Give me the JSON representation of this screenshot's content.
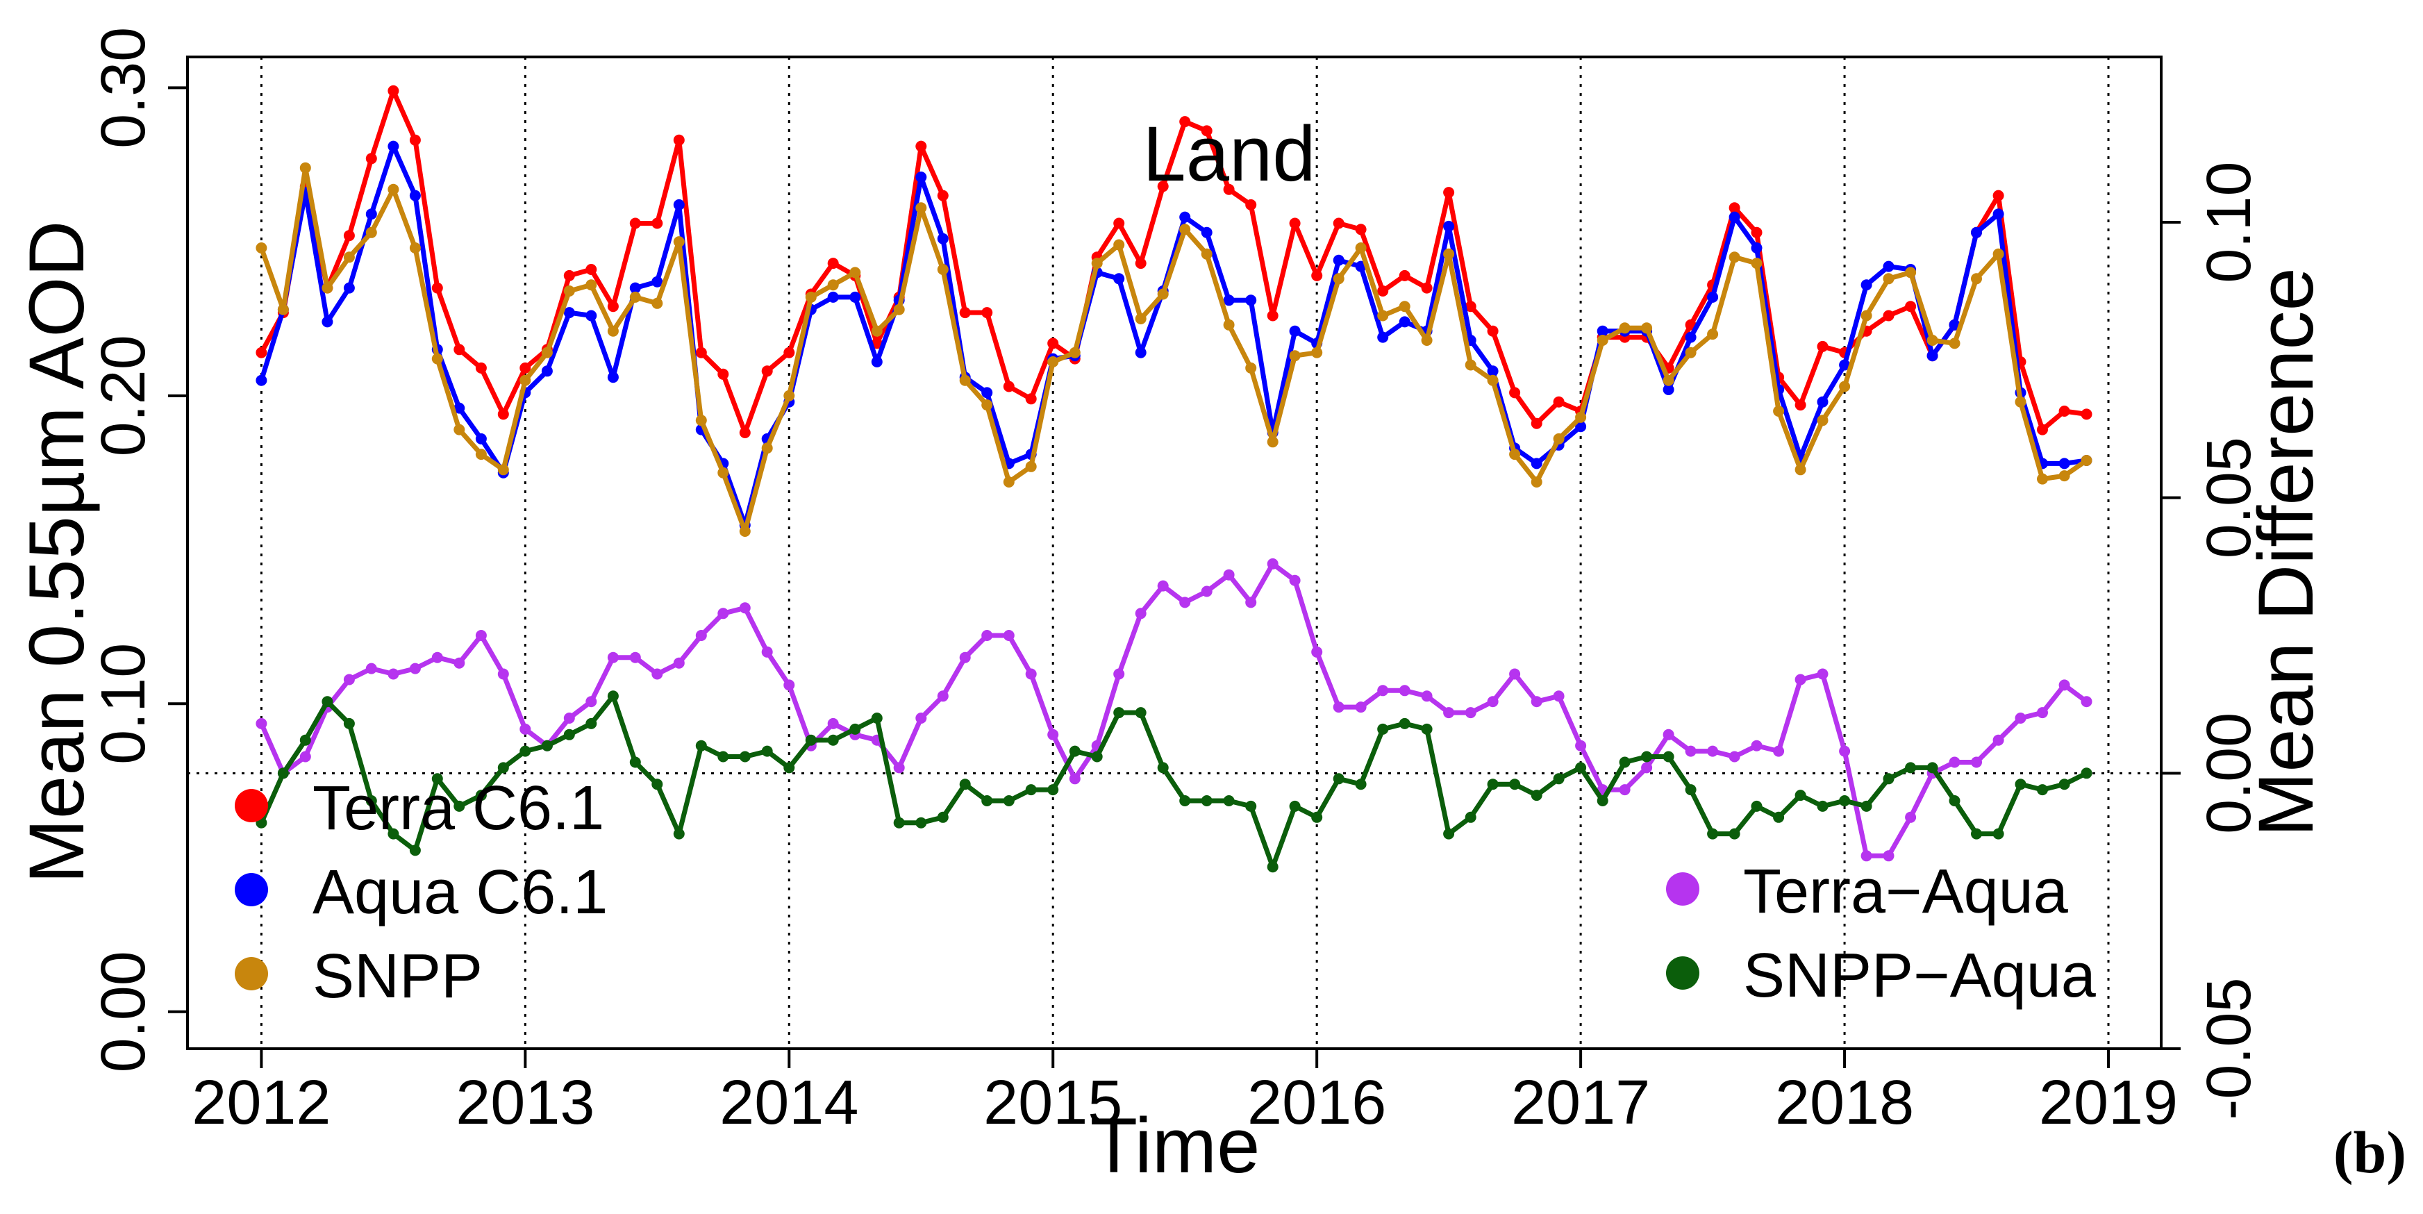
{
  "chart_data": {
    "type": "line",
    "title": "Land",
    "panel_label": "(b)",
    "xlabel": "Time",
    "ylabel_left": "Mean 0.55µm AOD",
    "ylabel_right": "Mean Difference",
    "x_ticks": [
      "2012",
      "2013",
      "2014",
      "2015",
      "2016",
      "2017",
      "2018",
      "2019"
    ],
    "x_tick_values": [
      2012,
      2013,
      2014,
      2015,
      2016,
      2017,
      2018,
      2019
    ],
    "xlim": [
      2011.72,
      2019.2
    ],
    "y_left": {
      "ticks": [
        "0.00",
        "0.10",
        "0.20",
        "0.30"
      ],
      "tick_values": [
        0,
        0.1,
        0.2,
        0.3
      ],
      "lim": [
        -0.012,
        0.31
      ]
    },
    "y_right": {
      "ticks": [
        "-0.05",
        "0.00",
        "0.05",
        "0.10"
      ],
      "tick_values": [
        -0.05,
        0,
        0.05,
        0.1
      ],
      "lim": [
        -0.05,
        0.13
      ]
    },
    "grid": "vertical dotted lines at each year; dotted horizontal line at zero mean difference",
    "x": [
      2012.0,
      2012.083,
      2012.167,
      2012.25,
      2012.333,
      2012.417,
      2012.5,
      2012.583,
      2012.667,
      2012.75,
      2012.833,
      2012.917,
      2013.0,
      2013.083,
      2013.167,
      2013.25,
      2013.333,
      2013.417,
      2013.5,
      2013.583,
      2013.667,
      2013.75,
      2013.833,
      2013.917,
      2014.0,
      2014.083,
      2014.167,
      2014.25,
      2014.333,
      2014.417,
      2014.5,
      2014.583,
      2014.667,
      2014.75,
      2014.833,
      2014.917,
      2015.0,
      2015.083,
      2015.167,
      2015.25,
      2015.333,
      2015.417,
      2015.5,
      2015.583,
      2015.667,
      2015.75,
      2015.833,
      2015.917,
      2016.0,
      2016.083,
      2016.167,
      2016.25,
      2016.333,
      2016.417,
      2016.5,
      2016.583,
      2016.667,
      2016.75,
      2016.833,
      2016.917,
      2017.0,
      2017.083,
      2017.167,
      2017.25,
      2017.333,
      2017.417,
      2017.5,
      2017.583,
      2017.667,
      2017.75,
      2017.833,
      2017.917,
      2018.0,
      2018.083,
      2018.167,
      2018.25,
      2018.333,
      2018.417,
      2018.5,
      2018.583,
      2018.667,
      2018.75,
      2018.833,
      2018.917
    ],
    "series": [
      {
        "name": "Terra C6.1",
        "axis": "left",
        "color": "#ff0000",
        "values": [
          0.214,
          0.227,
          0.268,
          0.235,
          0.252,
          0.277,
          0.299,
          0.283,
          0.235,
          0.215,
          0.209,
          0.194,
          0.209,
          0.215,
          0.239,
          0.241,
          0.229,
          0.256,
          0.256,
          0.283,
          0.214,
          0.207,
          0.188,
          0.208,
          0.214,
          0.233,
          0.243,
          0.239,
          0.217,
          0.232,
          0.281,
          0.265,
          0.227,
          0.227,
          0.203,
          0.199,
          0.217,
          0.212,
          0.245,
          0.256,
          0.243,
          0.268,
          0.289,
          0.286,
          0.267,
          0.262,
          0.226,
          0.256,
          0.239,
          0.256,
          0.254,
          0.234,
          0.239,
          0.235,
          0.266,
          0.229,
          0.221,
          0.201,
          0.191,
          0.198,
          0.195,
          0.219,
          0.219,
          0.219,
          0.209,
          0.223,
          0.236,
          0.261,
          0.253,
          0.206,
          0.197,
          0.216,
          0.214,
          0.221,
          0.226,
          0.229,
          0.213,
          0.223,
          0.253,
          0.265,
          0.211,
          0.189,
          0.195,
          0.194
        ]
      },
      {
        "name": "Aqua C6.1",
        "axis": "left",
        "color": "#0000ff",
        "values": [
          0.205,
          0.228,
          0.266,
          0.224,
          0.235,
          0.259,
          0.281,
          0.265,
          0.215,
          0.196,
          0.186,
          0.175,
          0.201,
          0.208,
          0.227,
          0.226,
          0.206,
          0.235,
          0.237,
          0.262,
          0.189,
          0.178,
          0.158,
          0.186,
          0.198,
          0.228,
          0.232,
          0.232,
          0.211,
          0.231,
          0.271,
          0.251,
          0.206,
          0.201,
          0.178,
          0.181,
          0.212,
          0.213,
          0.24,
          0.238,
          0.214,
          0.234,
          0.258,
          0.253,
          0.231,
          0.231,
          0.188,
          0.221,
          0.217,
          0.244,
          0.242,
          0.219,
          0.224,
          0.221,
          0.255,
          0.218,
          0.208,
          0.183,
          0.178,
          0.184,
          0.19,
          0.221,
          0.221,
          0.221,
          0.202,
          0.219,
          0.232,
          0.258,
          0.248,
          0.202,
          0.18,
          0.198,
          0.21,
          0.236,
          0.242,
          0.241,
          0.213,
          0.223,
          0.253,
          0.259,
          0.201,
          0.178,
          0.178,
          0.179
        ]
      },
      {
        "name": "SNPP",
        "axis": "left",
        "color": "#c8860d",
        "values": [
          0.248,
          0.228,
          0.274,
          0.235,
          0.245,
          0.253,
          0.267,
          0.248,
          0.212,
          0.189,
          0.181,
          0.176,
          0.205,
          0.214,
          0.234,
          0.236,
          0.221,
          0.232,
          0.23,
          0.25,
          0.192,
          0.175,
          0.156,
          0.183,
          0.2,
          0.232,
          0.236,
          0.24,
          0.221,
          0.228,
          0.261,
          0.241,
          0.205,
          0.197,
          0.172,
          0.177,
          0.211,
          0.214,
          0.243,
          0.249,
          0.225,
          0.233,
          0.254,
          0.246,
          0.223,
          0.209,
          0.185,
          0.213,
          0.214,
          0.238,
          0.248,
          0.226,
          0.229,
          0.218,
          0.246,
          0.21,
          0.205,
          0.181,
          0.172,
          0.186,
          0.193,
          0.218,
          0.222,
          0.222,
          0.205,
          0.214,
          0.22,
          0.245,
          0.243,
          0.195,
          0.176,
          0.192,
          0.203,
          0.226,
          0.238,
          0.24,
          0.218,
          0.217,
          0.238,
          0.246,
          0.198,
          0.173,
          0.174,
          0.179
        ]
      },
      {
        "name": "Terra−Aqua",
        "axis": "right",
        "color": "#b634ef",
        "values": [
          0.009,
          -0.0,
          0.003,
          0.012,
          0.017,
          0.019,
          0.018,
          0.019,
          0.021,
          0.02,
          0.025,
          0.018,
          0.008,
          0.005,
          0.01,
          0.013,
          0.021,
          0.021,
          0.018,
          0.02,
          0.025,
          0.029,
          0.03,
          0.022,
          0.016,
          0.005,
          0.009,
          0.007,
          0.006,
          0.001,
          0.01,
          0.014,
          0.021,
          0.025,
          0.025,
          0.018,
          0.007,
          -0.001,
          0.005,
          0.018,
          0.029,
          0.034,
          0.031,
          0.033,
          0.036,
          0.031,
          0.038,
          0.035,
          0.022,
          0.012,
          0.012,
          0.015,
          0.015,
          0.014,
          0.011,
          0.011,
          0.013,
          0.018,
          0.013,
          0.014,
          0.005,
          -0.003,
          -0.003,
          0.001,
          0.007,
          0.004,
          0.004,
          0.003,
          0.005,
          0.004,
          0.017,
          0.018,
          0.004,
          -0.015,
          -0.015,
          -0.008,
          0.0,
          0.002,
          0.002,
          0.006,
          0.01,
          0.011,
          0.016,
          0.013
        ]
      },
      {
        "name": "SNPP−Aqua",
        "axis": "right",
        "color": "#0b5e0b",
        "values": [
          -0.009,
          0.0,
          0.006,
          0.013,
          0.009,
          -0.005,
          -0.011,
          -0.014,
          -0.001,
          -0.006,
          -0.004,
          0.001,
          0.004,
          0.005,
          0.007,
          0.009,
          0.014,
          0.002,
          -0.002,
          -0.011,
          0.005,
          0.003,
          0.003,
          0.004,
          0.001,
          0.006,
          0.006,
          0.008,
          0.01,
          -0.009,
          -0.009,
          -0.008,
          -0.002,
          -0.005,
          -0.005,
          -0.003,
          -0.003,
          0.004,
          0.003,
          0.011,
          0.011,
          0.001,
          -0.005,
          -0.005,
          -0.005,
          -0.006,
          -0.017,
          -0.006,
          -0.008,
          -0.001,
          -0.002,
          0.008,
          0.009,
          0.008,
          -0.011,
          -0.008,
          -0.002,
          -0.002,
          -0.004,
          -0.001,
          0.001,
          -0.005,
          0.002,
          0.003,
          0.003,
          -0.003,
          -0.011,
          -0.011,
          -0.006,
          -0.008,
          -0.004,
          -0.006,
          -0.005,
          -0.006,
          -0.001,
          0.001,
          0.001,
          -0.005,
          -0.011,
          -0.011,
          -0.002,
          -0.003,
          -0.002,
          0.0
        ]
      }
    ],
    "legend": [
      {
        "label": "Terra C6.1",
        "color": "#ff0000",
        "placement": "bottom-left"
      },
      {
        "label": "Aqua C6.1",
        "color": "#0000ff",
        "placement": "bottom-left"
      },
      {
        "label": "SNPP",
        "color": "#c8860d",
        "placement": "bottom-left"
      },
      {
        "label": "Terra−Aqua",
        "color": "#b634ef",
        "placement": "bottom-right"
      },
      {
        "label": "SNPP−Aqua",
        "color": "#0b5e0b",
        "placement": "bottom-right"
      }
    ]
  }
}
